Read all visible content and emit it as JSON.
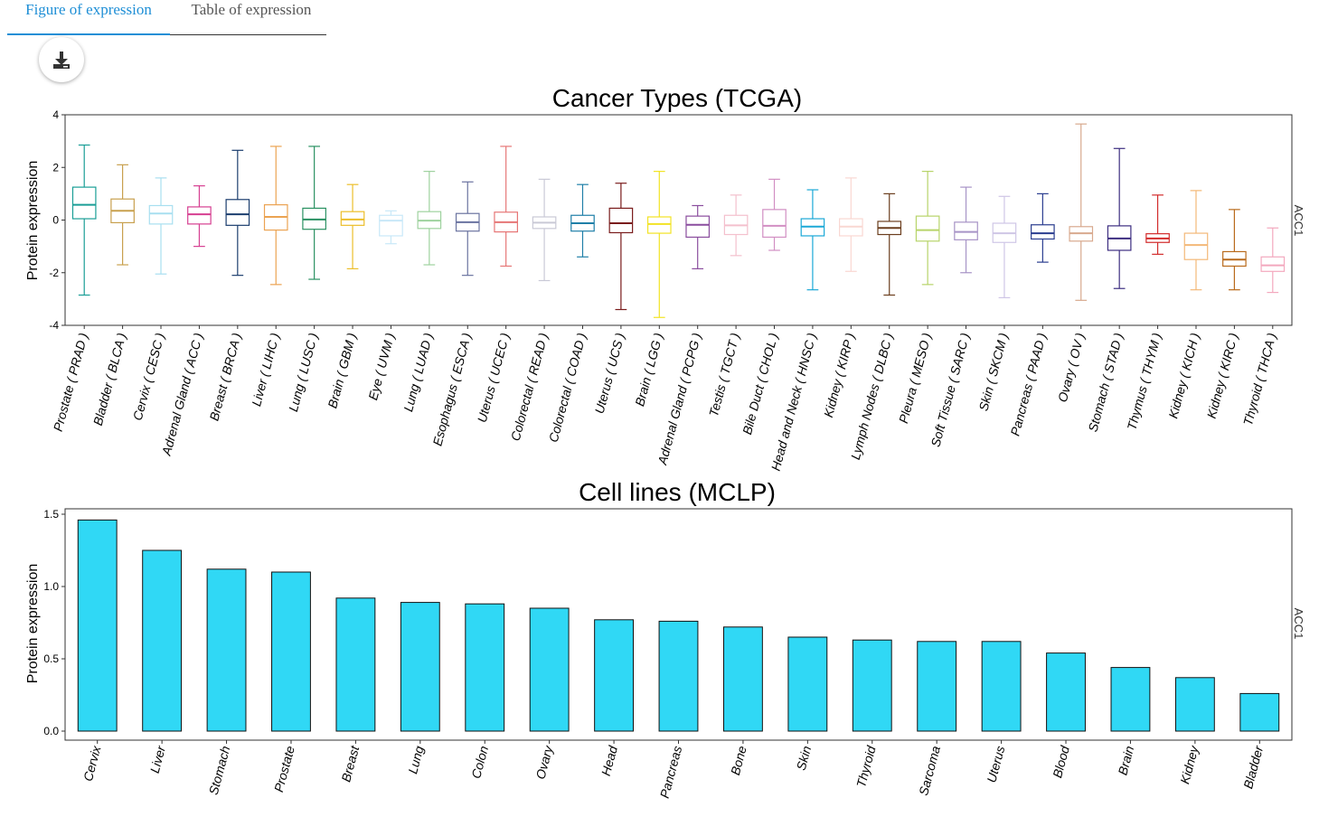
{
  "tabs": [
    {
      "label": "Figure of expression",
      "active": true
    },
    {
      "label": "Table of expression",
      "active": false
    }
  ],
  "download_icon": "download-icon",
  "chart_data": [
    {
      "type": "box",
      "title": "Cancer Types (TCGA)",
      "ylabel": "Protein expression",
      "facet_label": "ACC1",
      "ylim": [
        -4,
        4
      ],
      "yticks": [
        -4,
        -2,
        0,
        2,
        4
      ],
      "grid": false,
      "series": [
        {
          "name": "Prostate ( PRAD )",
          "color": "#1a9e96",
          "min": -2.85,
          "q1": 0.05,
          "median": 0.58,
          "q3": 1.25,
          "max": 2.85
        },
        {
          "name": "Bladder ( BLCA )",
          "color": "#c8a04e",
          "min": -1.7,
          "q1": -0.1,
          "median": 0.35,
          "q3": 0.8,
          "max": 2.1
        },
        {
          "name": "Cervix ( CESC )",
          "color": "#a8dff0",
          "min": -2.05,
          "q1": -0.15,
          "median": 0.25,
          "q3": 0.55,
          "max": 1.6
        },
        {
          "name": "Adrenal Gland ( ACC )",
          "color": "#d63f91",
          "min": -1.0,
          "q1": -0.15,
          "median": 0.22,
          "q3": 0.5,
          "max": 1.3
        },
        {
          "name": "Breast ( BRCA )",
          "color": "#1b3e6e",
          "min": -2.1,
          "q1": -0.2,
          "median": 0.22,
          "q3": 0.78,
          "max": 2.65
        },
        {
          "name": "Liver ( LIHC )",
          "color": "#eba352",
          "min": -2.45,
          "q1": -0.38,
          "median": 0.12,
          "q3": 0.58,
          "max": 2.8
        },
        {
          "name": "Lung ( LUSC )",
          "color": "#2a9162",
          "min": -2.25,
          "q1": -0.35,
          "median": 0.02,
          "q3": 0.45,
          "max": 2.8
        },
        {
          "name": "Brain ( GBM )",
          "color": "#ecbe2a",
          "min": -1.85,
          "q1": -0.2,
          "median": 0.02,
          "q3": 0.32,
          "max": 1.35
        },
        {
          "name": "Eye ( UVM )",
          "color": "#c8e8f8",
          "min": -0.9,
          "q1": -0.6,
          "median": -0.02,
          "q3": 0.18,
          "max": 0.35
        },
        {
          "name": "Lung ( LUAD )",
          "color": "#9ed29e",
          "min": -1.7,
          "q1": -0.32,
          "median": -0.02,
          "q3": 0.32,
          "max": 1.85
        },
        {
          "name": "Esophagus ( ESCA )",
          "color": "#6a73a0",
          "min": -2.1,
          "q1": -0.42,
          "median": -0.08,
          "q3": 0.25,
          "max": 1.45
        },
        {
          "name": "Uterus ( UCEC )",
          "color": "#e67676",
          "min": -1.75,
          "q1": -0.45,
          "median": -0.08,
          "q3": 0.3,
          "max": 2.8
        },
        {
          "name": "Colorectal ( READ )",
          "color": "#c9c9d6",
          "min": -2.3,
          "q1": -0.32,
          "median": -0.1,
          "q3": 0.12,
          "max": 1.55
        },
        {
          "name": "Colorectal ( COAD )",
          "color": "#1f7fa8",
          "min": -1.4,
          "q1": -0.42,
          "median": -0.12,
          "q3": 0.18,
          "max": 1.35
        },
        {
          "name": "Uterus ( UCS )",
          "color": "#7a1c1c",
          "min": -3.4,
          "q1": -0.48,
          "median": -0.12,
          "q3": 0.45,
          "max": 1.4
        },
        {
          "name": "Brain ( LGG )",
          "color": "#f2e324",
          "min": -3.7,
          "q1": -0.5,
          "median": -0.15,
          "q3": 0.12,
          "max": 1.85
        },
        {
          "name": "Adrenal Gland ( PCPG )",
          "color": "#8a4d9e",
          "min": -1.85,
          "q1": -0.65,
          "median": -0.18,
          "q3": 0.15,
          "max": 0.55
        },
        {
          "name": "Testis ( TGCT )",
          "color": "#f4c0cd",
          "min": -1.35,
          "q1": -0.55,
          "median": -0.2,
          "q3": 0.18,
          "max": 0.95
        },
        {
          "name": "Bile Duct ( CHOL )",
          "color": "#d28fc3",
          "min": -1.15,
          "q1": -0.65,
          "median": -0.22,
          "q3": 0.4,
          "max": 1.55
        },
        {
          "name": "Head and Neck ( HNSC )",
          "color": "#1ba8d6",
          "min": -2.65,
          "q1": -0.6,
          "median": -0.25,
          "q3": 0.05,
          "max": 1.15
        },
        {
          "name": "Kidney ( KIRP )",
          "color": "#f9d7d2",
          "min": -1.95,
          "q1": -0.6,
          "median": -0.25,
          "q3": 0.05,
          "max": 1.6
        },
        {
          "name": "Lymph Nodes ( DLBC )",
          "color": "#6b3e1e",
          "min": -2.85,
          "q1": -0.55,
          "median": -0.3,
          "q3": -0.05,
          "max": 1.0
        },
        {
          "name": "Pleura ( MESO )",
          "color": "#b7d46a",
          "min": -2.45,
          "q1": -0.8,
          "median": -0.38,
          "q3": 0.15,
          "max": 1.85
        },
        {
          "name": "Soft Tissue ( SARC )",
          "color": "#a793c6",
          "min": -2.0,
          "q1": -0.75,
          "median": -0.45,
          "q3": -0.08,
          "max": 1.25
        },
        {
          "name": "Skin ( SKCM )",
          "color": "#cfc6e6",
          "min": -2.95,
          "q1": -0.85,
          "median": -0.5,
          "q3": -0.12,
          "max": 0.9
        },
        {
          "name": "Pancreas ( PAAD )",
          "color": "#2a3d8f",
          "min": -1.6,
          "q1": -0.72,
          "median": -0.5,
          "q3": -0.18,
          "max": 1.0
        },
        {
          "name": "Ovary ( OV )",
          "color": "#d8a98e",
          "min": -3.05,
          "q1": -0.8,
          "median": -0.5,
          "q3": -0.25,
          "max": 3.65
        },
        {
          "name": "Stomach ( STAD )",
          "color": "#3c2d80",
          "min": -2.6,
          "q1": -1.15,
          "median": -0.7,
          "q3": -0.22,
          "max": 2.72
        },
        {
          "name": "Thymus ( THYM )",
          "color": "#d22b2b",
          "min": -1.3,
          "q1": -0.85,
          "median": -0.7,
          "q3": -0.52,
          "max": 0.95
        },
        {
          "name": "Kidney ( KICH )",
          "color": "#f3b878",
          "min": -2.65,
          "q1": -1.5,
          "median": -0.95,
          "q3": -0.5,
          "max": 1.12
        },
        {
          "name": "Kidney ( KIRC )",
          "color": "#b96a1c",
          "min": -2.65,
          "q1": -1.75,
          "median": -1.5,
          "q3": -1.2,
          "max": 0.4
        },
        {
          "name": "Thyroid ( THCA )",
          "color": "#f3a8be",
          "min": -2.75,
          "q1": -1.95,
          "median": -1.72,
          "q3": -1.4,
          "max": -0.3
        }
      ]
    },
    {
      "type": "bar",
      "title": "Cell lines (MCLP)",
      "ylabel": "Protein expression",
      "facet_label": "ACC1",
      "ylim": [
        0,
        1.5
      ],
      "yticks": [
        "0.0",
        "0.5",
        "1.0",
        "1.5"
      ],
      "grid": false,
      "bar_color": "#30d8f5",
      "categories": [
        "Cervix",
        "Liver",
        "Stomach",
        "Prostate",
        "Breast",
        "Lung",
        "Colon",
        "Ovary",
        "Head",
        "Pancreas",
        "Bone",
        "Skin",
        "Thyroid",
        "Sarcoma",
        "Uterus",
        "Blood",
        "Brain",
        "Kidney",
        "Bladder"
      ],
      "values": [
        1.46,
        1.25,
        1.12,
        1.1,
        0.92,
        0.89,
        0.88,
        0.85,
        0.77,
        0.76,
        0.72,
        0.65,
        0.63,
        0.62,
        0.62,
        0.54,
        0.44,
        0.37,
        0.26
      ]
    }
  ]
}
